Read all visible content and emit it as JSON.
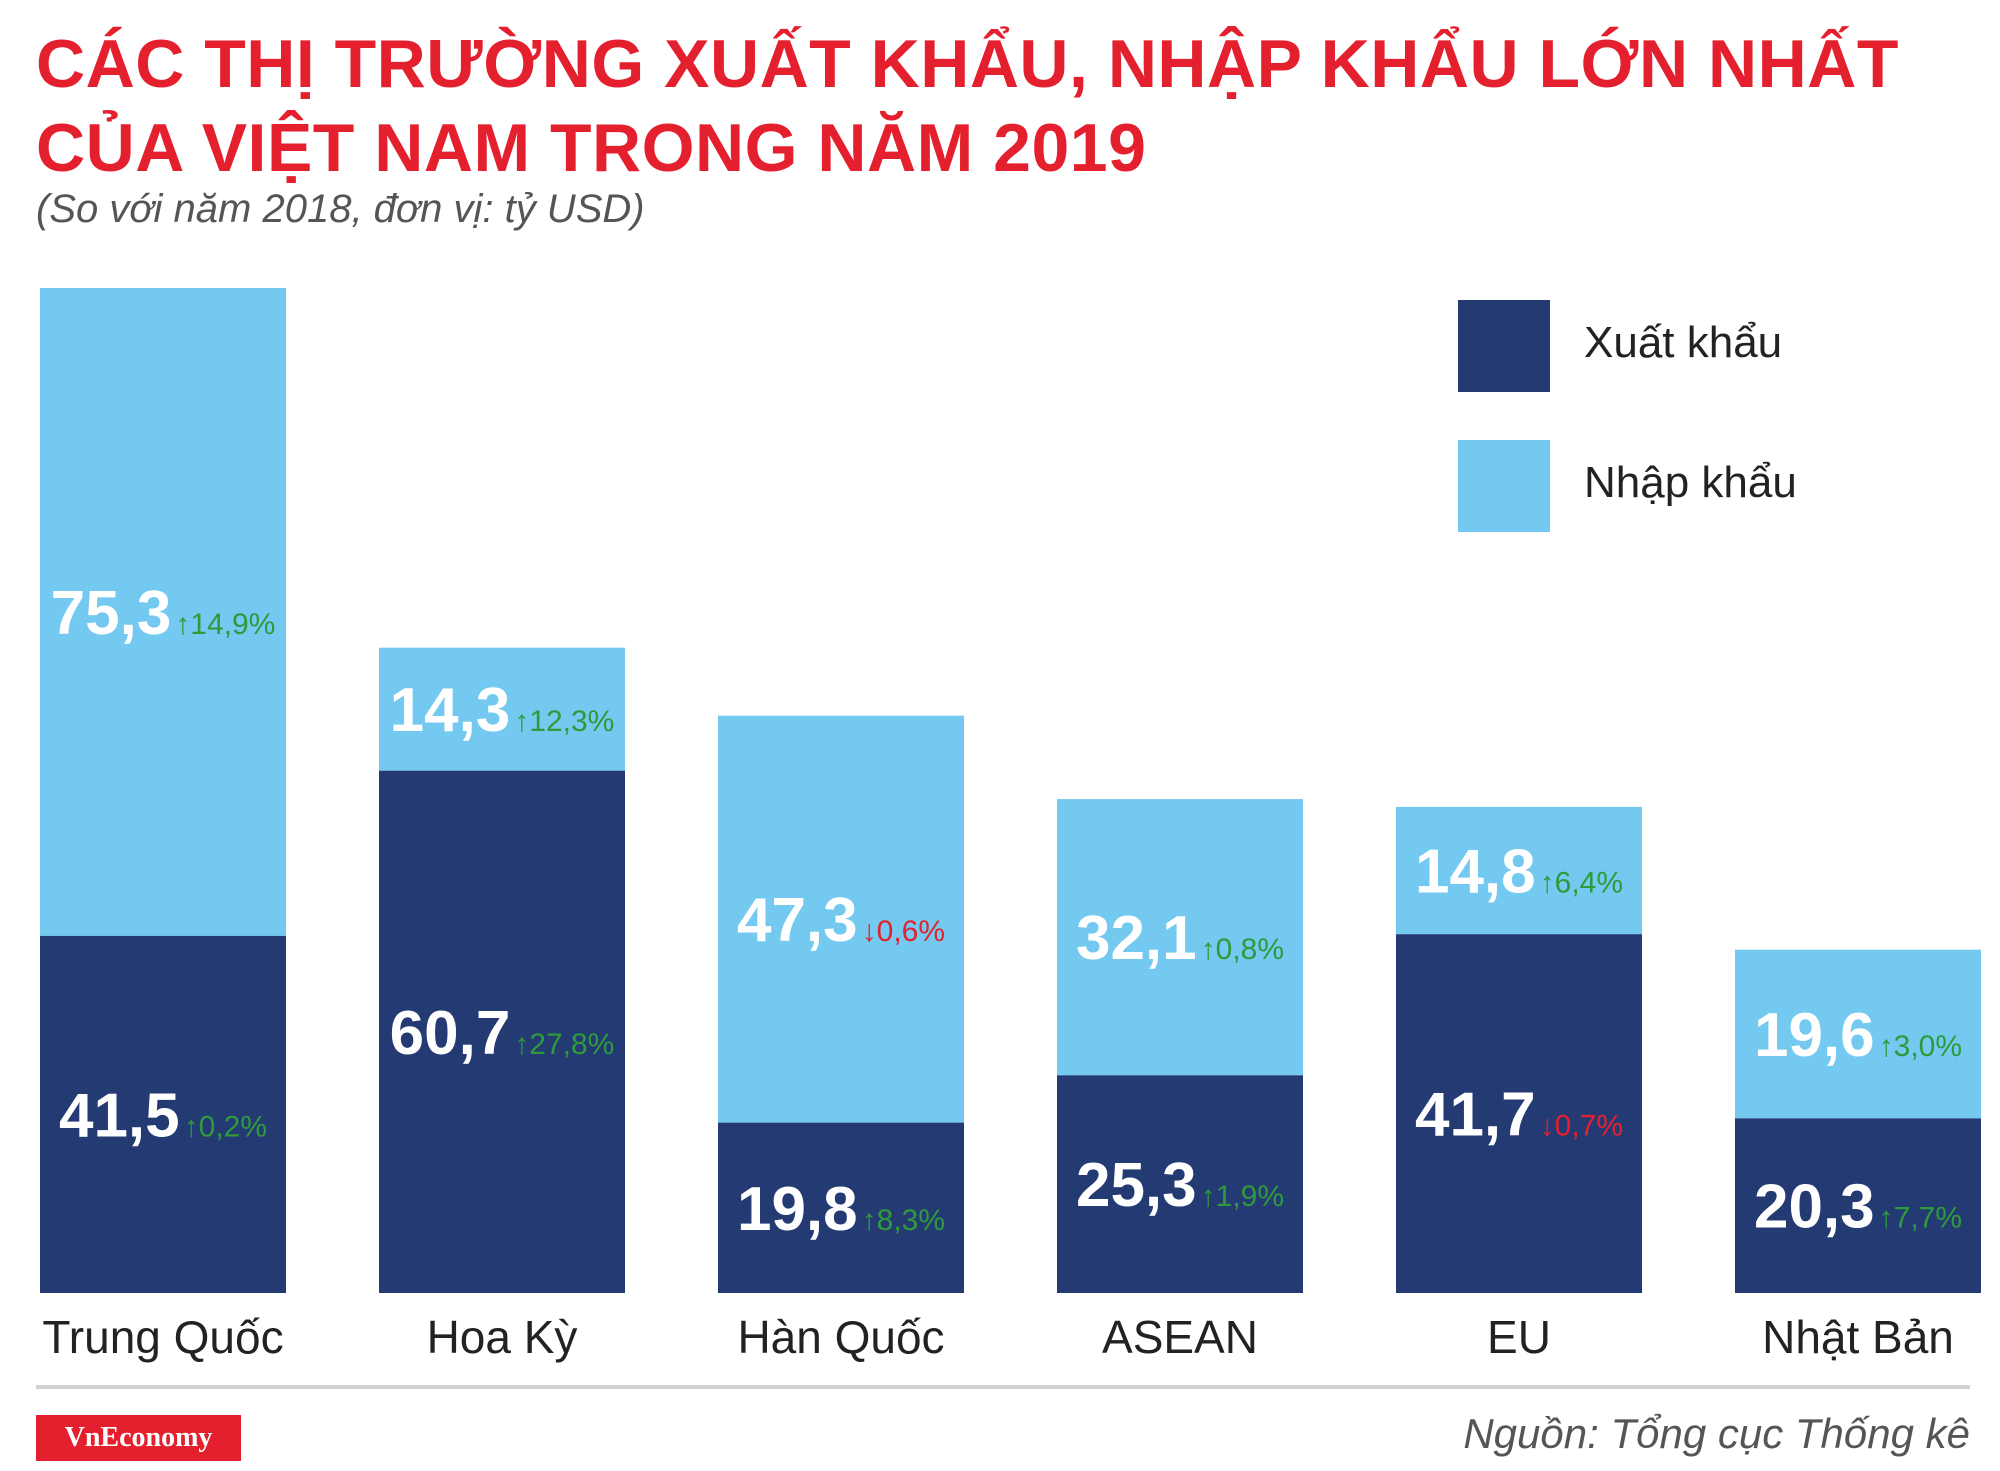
{
  "header": {
    "title_line1": "CÁC THỊ TRƯỜNG XUẤT KHẨU, NHẬP KHẨU LỚN NHẤT",
    "title_line2": "CỦA VIỆT NAM TRONG NĂM 2019",
    "subtitle": "(So với năm 2018, đơn vị: tỷ USD)"
  },
  "legend": {
    "items": [
      {
        "label": "Xuất khẩu",
        "color": "#243a73"
      },
      {
        "label": "Nhập khẩu",
        "color": "#74c9f0"
      }
    ]
  },
  "colors": {
    "export": "#243a73",
    "import": "#74c9f0",
    "up": "#2e9a3c",
    "down": "#e5202e",
    "value_text": "#ffffff",
    "category_text": "#222222"
  },
  "chart_data": {
    "type": "bar",
    "stacked": true,
    "categories": [
      "Trung Quốc",
      "Hoa Kỳ",
      "Hàn Quốc",
      "ASEAN",
      "EU",
      "Nhật Bản"
    ],
    "series": [
      {
        "name": "Xuất khẩu",
        "values": [
          41.5,
          60.7,
          19.8,
          25.3,
          41.7,
          20.3
        ],
        "labels": [
          "41,5",
          "60,7",
          "19,8",
          "25,3",
          "41,7",
          "20,3"
        ],
        "changes": [
          "0,2%",
          "27,8%",
          "8,3%",
          "1,9%",
          "0,7%",
          "7,7%"
        ],
        "directions": [
          "up",
          "up",
          "up",
          "up",
          "down",
          "up"
        ]
      },
      {
        "name": "Nhập khẩu",
        "values": [
          75.3,
          14.3,
          47.3,
          32.1,
          14.8,
          19.6
        ],
        "labels": [
          "75,3",
          "14,3",
          "47,3",
          "32,1",
          "14,8",
          "19,6"
        ],
        "changes": [
          "14,9%",
          "12,3%",
          "0,6%",
          "0,8%",
          "6,4%",
          "3,0%"
        ],
        "directions": [
          "up",
          "up",
          "down",
          "up",
          "up",
          "up"
        ]
      }
    ],
    "ylim": [
      0,
      116.8
    ],
    "grid": false,
    "legend_position": "top-right"
  },
  "footer": {
    "logo": "VnEconomy",
    "source": "Nguồn: Tổng cục Thống kê"
  }
}
